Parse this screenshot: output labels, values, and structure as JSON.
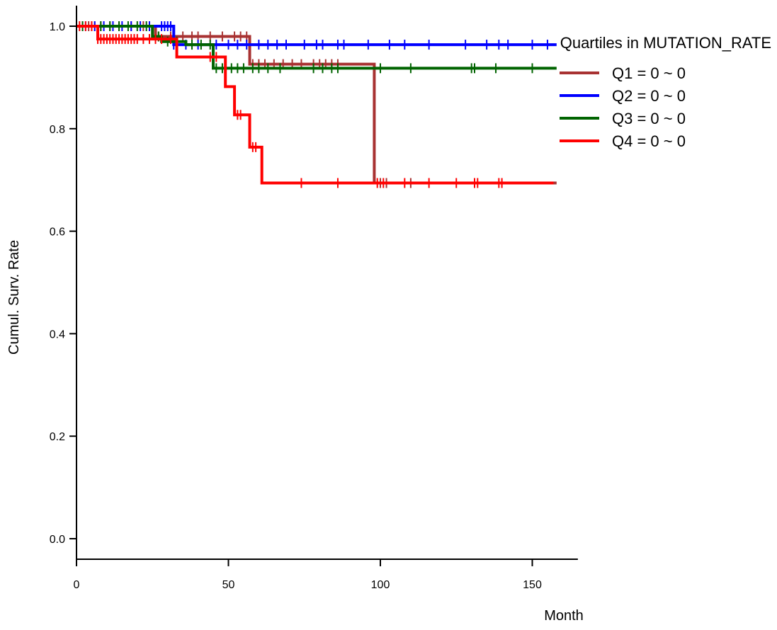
{
  "chart_data": {
    "type": "line",
    "xlabel": "Month",
    "ylabel": "Cumul. Surv. Rate",
    "xlim": [
      0,
      165
    ],
    "ylim": [
      -0.04,
      1.04
    ],
    "x_ticks": [
      0,
      50,
      100,
      150
    ],
    "x_tick_labels": [
      "0",
      "50",
      "100",
      "150"
    ],
    "y_ticks": [
      0.0,
      0.2,
      0.4,
      0.6,
      0.8,
      1.0
    ],
    "y_tick_labels": [
      "0.0",
      "0.2",
      "0.4",
      "0.6",
      "0.8",
      "1.0"
    ],
    "grid": false,
    "legend": {
      "title": "Quartiles in MUTATION_RATE",
      "position": "top-right"
    },
    "series": [
      {
        "name": "Q1 = 0 ~ 0",
        "color": "#a83232",
        "steps": [
          [
            0,
            1.0
          ],
          [
            26,
            0.98
          ],
          [
            57,
            0.926
          ],
          [
            98,
            0.694
          ],
          [
            158,
            0.694
          ]
        ],
        "censored": [
          2,
          4,
          6,
          8,
          11,
          14,
          18,
          22,
          27,
          31,
          35,
          38,
          40,
          44,
          48,
          52,
          54,
          56,
          58,
          60,
          62,
          65,
          68,
          71,
          74,
          78,
          80,
          82,
          84,
          86,
          100,
          102,
          110
        ]
      },
      {
        "name": "Q2 = 0 ~ 0",
        "color": "#0000ff",
        "steps": [
          [
            0,
            1.0
          ],
          [
            32,
            0.964
          ],
          [
            158,
            0.964
          ]
        ],
        "censored": [
          3,
          6,
          9,
          12,
          15,
          18,
          21,
          24,
          28,
          29,
          30,
          31,
          32,
          36,
          40,
          46,
          50,
          53,
          56,
          60,
          63,
          66,
          69,
          75,
          79,
          81,
          86,
          88,
          96,
          103,
          108,
          116,
          128,
          135,
          139,
          142,
          150,
          155
        ]
      },
      {
        "name": "Q3 = 0 ~ 0",
        "color": "#006400",
        "steps": [
          [
            0,
            1.0
          ],
          [
            25,
            0.98
          ],
          [
            28,
            0.97
          ],
          [
            36,
            0.964
          ],
          [
            45,
            0.918
          ],
          [
            158,
            0.918
          ]
        ],
        "censored": [
          2,
          5,
          8,
          11,
          14,
          17,
          20,
          23,
          27,
          30,
          33,
          38,
          41,
          44,
          46,
          48,
          51,
          53,
          55,
          58,
          60,
          63,
          67,
          78,
          81,
          84,
          86,
          100,
          110,
          130,
          131,
          138,
          150
        ]
      },
      {
        "name": "Q4 = 0 ~ 0",
        "color": "#ff0000",
        "steps": [
          [
            0,
            1.0
          ],
          [
            7,
            0.975
          ],
          [
            33,
            0.94
          ],
          [
            45,
            0.94
          ],
          [
            49,
            0.882
          ],
          [
            52,
            0.827
          ],
          [
            57,
            0.764
          ],
          [
            61,
            0.694
          ],
          [
            157,
            0.694
          ]
        ],
        "censored": [
          1,
          3,
          5,
          7,
          8,
          9,
          10,
          11,
          12,
          13,
          14,
          15,
          16,
          17,
          18,
          19,
          20,
          22,
          24,
          26,
          28,
          31,
          44,
          46,
          53,
          54,
          58,
          59,
          74,
          86,
          99,
          101,
          108,
          116,
          125,
          131,
          132,
          139,
          140
        ]
      }
    ]
  }
}
